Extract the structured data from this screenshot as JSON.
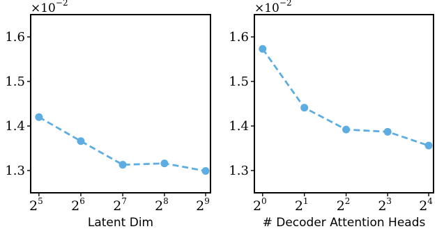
{
  "chart_data": [
    {
      "type": "line",
      "title": "",
      "xlabel": "Latent Dim",
      "ylabel": "",
      "y_multiplier": "×10^-2",
      "x_scale": "log2",
      "categories": [
        "2^5",
        "2^6",
        "2^7",
        "2^8",
        "2^9"
      ],
      "x": [
        32,
        64,
        128,
        256,
        512
      ],
      "series": [
        {
          "values": [
            1.42,
            1.366,
            1.313,
            1.316,
            1.299
          ]
        }
      ],
      "ylim": [
        1.25,
        1.65
      ],
      "yticks": [
        1.3,
        1.4,
        1.5,
        1.6
      ],
      "ytick_labels": [
        "1.3",
        "1.4",
        "1.5",
        "1.6"
      ],
      "grid": false,
      "color": "#5DADE2"
    },
    {
      "type": "line",
      "title": "",
      "xlabel": "# Decoder Attention Heads",
      "ylabel": "",
      "y_multiplier": "×10^-2",
      "x_scale": "log2",
      "categories": [
        "2^0",
        "2^1",
        "2^2",
        "2^3",
        "2^4"
      ],
      "x": [
        1,
        2,
        4,
        8,
        16
      ],
      "series": [
        {
          "values": [
            1.573,
            1.441,
            1.392,
            1.387,
            1.356
          ]
        }
      ],
      "ylim": [
        1.25,
        1.65
      ],
      "yticks": [
        1.3,
        1.4,
        1.5,
        1.6
      ],
      "ytick_labels": [
        "1.3",
        "1.4",
        "1.5",
        "1.6"
      ],
      "grid": false,
      "color": "#5DADE2"
    }
  ]
}
